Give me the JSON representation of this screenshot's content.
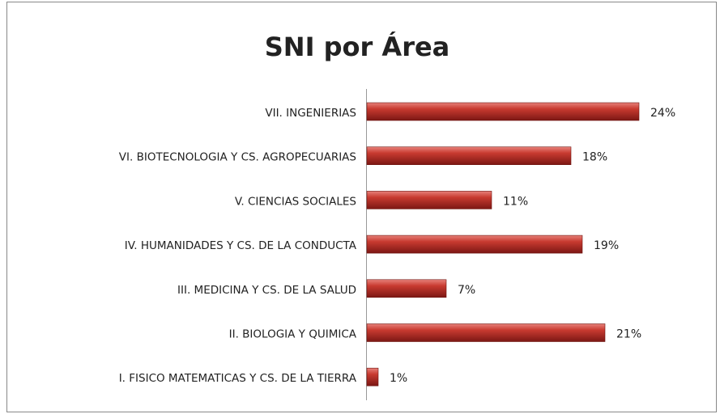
{
  "chart_data": {
    "type": "bar",
    "orientation": "horizontal",
    "title": "SNI por Área",
    "categories": [
      "VII. INGENIERIAS",
      "VI. BIOTECNOLOGIA  Y CS. AGROPECUARIAS",
      "V. CIENCIAS  SOCIALES",
      "IV. HUMANIDADES  Y CS. DE LA CONDUCTA",
      "III. MEDICINA  Y CS. DE LA SALUD",
      "II. BIOLOGIA Y QUIMICA",
      "I. FISICO MATEMATICAS Y CS. DE LA TIERRA"
    ],
    "values": [
      24,
      18,
      11,
      19,
      7,
      21,
      1
    ],
    "value_labels": [
      "24%",
      "18%",
      "11%",
      "19%",
      "7%",
      "21%",
      "1%"
    ],
    "color": "#c0392b"
  }
}
